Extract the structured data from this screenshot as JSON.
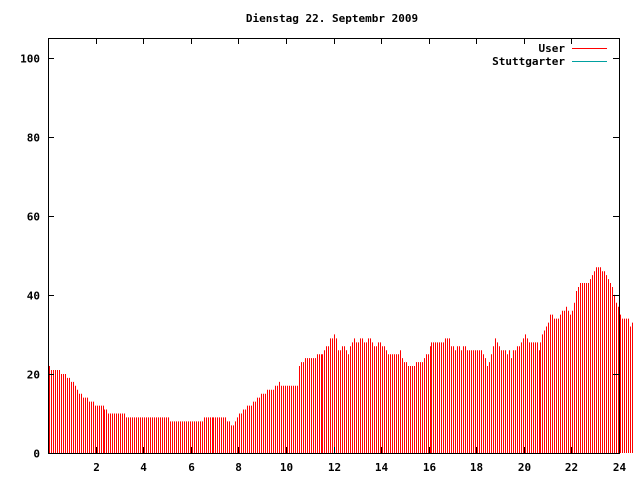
{
  "chart_data": {
    "type": "bar",
    "title": "Dienstag 22. Septembr 2009",
    "xlabel": "",
    "ylabel": "",
    "xlim": [
      0,
      24
    ],
    "ylim": [
      0,
      105
    ],
    "xticks": [
      2,
      4,
      6,
      8,
      10,
      12,
      14,
      16,
      18,
      20,
      22,
      24
    ],
    "yticks": [
      0,
      20,
      40,
      60,
      80,
      100
    ],
    "grid": false,
    "legend_position": "top-right",
    "series": [
      {
        "name": "User",
        "color": "#ff0000"
      },
      {
        "name": "Stuttgarter",
        "color": "#00a0a0"
      }
    ],
    "bar_interval_hours": 0.0833,
    "values": [
      22,
      21,
      21,
      21,
      21,
      21,
      20,
      20,
      20,
      19,
      19,
      18,
      18,
      17,
      16,
      15,
      15,
      14,
      14,
      14,
      13,
      13,
      13,
      12,
      12,
      12,
      12,
      12,
      11,
      11,
      10,
      10,
      10,
      10,
      10,
      10,
      10,
      10,
      10,
      9,
      9,
      9,
      9,
      9,
      9,
      9,
      9,
      9,
      9,
      9,
      9,
      9,
      9,
      9,
      9,
      9,
      9,
      9,
      9,
      9,
      9,
      8,
      8,
      8,
      8,
      8,
      8,
      8,
      8,
      8,
      8,
      8,
      8,
      8,
      8,
      8,
      8,
      8,
      9,
      9,
      9,
      9,
      9,
      9,
      9,
      9,
      9,
      9,
      9,
      9,
      8,
      8,
      7,
      7,
      8,
      9,
      10,
      10,
      11,
      11,
      12,
      12,
      12,
      13,
      13,
      14,
      14,
      15,
      15,
      15,
      16,
      16,
      16,
      16,
      17,
      17,
      18,
      17,
      17,
      17,
      17,
      17,
      17,
      17,
      17,
      17,
      22,
      23,
      23,
      24,
      24,
      24,
      24,
      24,
      24,
      25,
      25,
      25,
      25,
      26,
      27,
      27,
      29,
      29,
      30,
      29,
      26,
      26,
      27,
      27,
      26,
      25,
      27,
      28,
      29,
      28,
      28,
      29,
      29,
      28,
      28,
      29,
      29,
      28,
      27,
      27,
      28,
      28,
      27,
      27,
      26,
      25,
      25,
      25,
      25,
      25,
      25,
      26,
      24,
      23,
      23,
      22,
      22,
      22,
      22,
      23,
      23,
      23,
      23,
      24,
      25,
      25,
      27,
      28,
      28,
      28,
      28,
      28,
      28,
      28,
      29,
      29,
      29,
      27,
      27,
      26,
      27,
      27,
      26,
      27,
      27,
      26,
      26,
      26,
      26,
      26,
      26,
      26,
      26,
      25,
      24,
      22,
      23,
      25,
      27,
      29,
      28,
      27,
      26,
      26,
      26,
      25,
      26,
      24,
      26,
      26,
      27,
      27,
      28,
      29,
      30,
      29,
      28,
      28,
      28,
      28,
      28,
      26,
      28,
      30,
      31,
      32,
      33,
      35,
      35,
      34,
      34,
      34,
      35,
      36,
      36,
      37,
      36,
      35,
      36,
      38,
      41,
      42,
      43,
      43,
      43,
      43,
      43,
      44,
      45,
      46,
      47,
      47,
      47,
      46,
      46,
      45,
      44,
      43,
      42,
      40,
      38,
      37,
      35,
      34,
      34,
      34,
      34,
      32,
      33
    ]
  }
}
